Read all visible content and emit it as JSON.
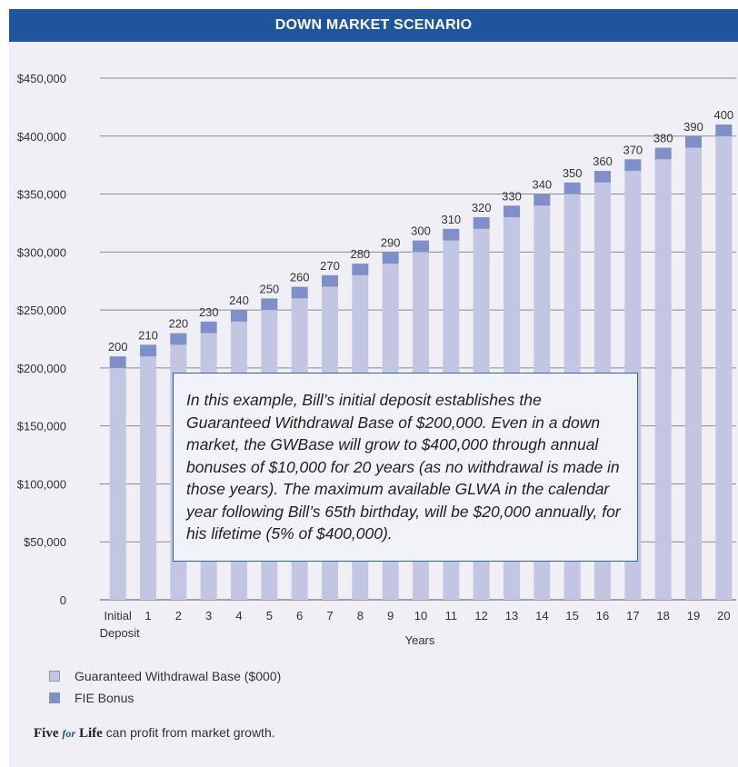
{
  "header": {
    "title": "DOWN MARKET SCENARIO"
  },
  "colors": {
    "header_bg": "#1f559a",
    "base": "#c3c6e3",
    "bonus": "#7f8fc8",
    "panel_bg": "#efeff5"
  },
  "chart_data": {
    "type": "bar",
    "stacked": true,
    "categories": [
      "Initial Deposit",
      "1",
      "2",
      "3",
      "4",
      "5",
      "6",
      "7",
      "8",
      "9",
      "10",
      "11",
      "12",
      "13",
      "14",
      "15",
      "16",
      "17",
      "18",
      "19",
      "20"
    ],
    "category_label_lines": [
      [
        "Initial",
        "Deposit"
      ],
      [
        "1"
      ],
      [
        "2"
      ],
      [
        "3"
      ],
      [
        "4"
      ],
      [
        "5"
      ],
      [
        "6"
      ],
      [
        "7"
      ],
      [
        "8"
      ],
      [
        "9"
      ],
      [
        "10"
      ],
      [
        "11"
      ],
      [
        "12"
      ],
      [
        "13"
      ],
      [
        "14"
      ],
      [
        "15"
      ],
      [
        "16"
      ],
      [
        "17"
      ],
      [
        "18"
      ],
      [
        "19"
      ],
      [
        "20"
      ]
    ],
    "series": [
      {
        "name": "Guaranteed Withdrawal Base ($000)",
        "values": [
          200000,
          210000,
          220000,
          230000,
          240000,
          250000,
          260000,
          270000,
          280000,
          290000,
          300000,
          310000,
          320000,
          330000,
          340000,
          350000,
          360000,
          370000,
          380000,
          390000,
          400000
        ]
      },
      {
        "name": "FIE Bonus",
        "values": [
          10000,
          10000,
          10000,
          10000,
          10000,
          10000,
          10000,
          10000,
          10000,
          10000,
          10000,
          10000,
          10000,
          10000,
          10000,
          10000,
          10000,
          10000,
          10000,
          10000,
          10000
        ]
      }
    ],
    "data_labels": [
      "200",
      "210",
      "220",
      "230",
      "240",
      "250",
      "260",
      "270",
      "280",
      "290",
      "300",
      "310",
      "320",
      "330",
      "340",
      "350",
      "360",
      "370",
      "380",
      "390",
      "400"
    ],
    "xlabel": "Years",
    "ylabel": "",
    "ylim": [
      0,
      450000
    ],
    "yticks": [
      0,
      50000,
      100000,
      150000,
      200000,
      250000,
      300000,
      350000,
      400000,
      450000
    ],
    "ytick_labels": [
      "0",
      "$50,000",
      "$100,000",
      "$150,000",
      "$200,000",
      "$250,000",
      "$300,000",
      "$350,000",
      "$400,000",
      "$450,000"
    ],
    "grid": true,
    "legend_position": "bottom-left"
  },
  "callout": {
    "text": "In this example, Bill’s initial deposit establishes the Guaranteed Withdrawal Base of $200,000. Even in a down market, the GWBase will grow to $400,000 through annual bonuses of $10,000 for 20 years (as no withdrawal is made in those years). The maximum available GLWA in the calendar year following Bill’s 65th birthday, will be $20,000 annually, for his lifetime (5% of $400,000)."
  },
  "legend": {
    "items": [
      {
        "label": "Guaranteed Withdrawal Base ($000)"
      },
      {
        "label": "FIE Bonus"
      }
    ]
  },
  "footer": {
    "brand_five": "Five",
    "brand_for": "for",
    "brand_life": "Life",
    "tagline": " can profit from market growth."
  }
}
